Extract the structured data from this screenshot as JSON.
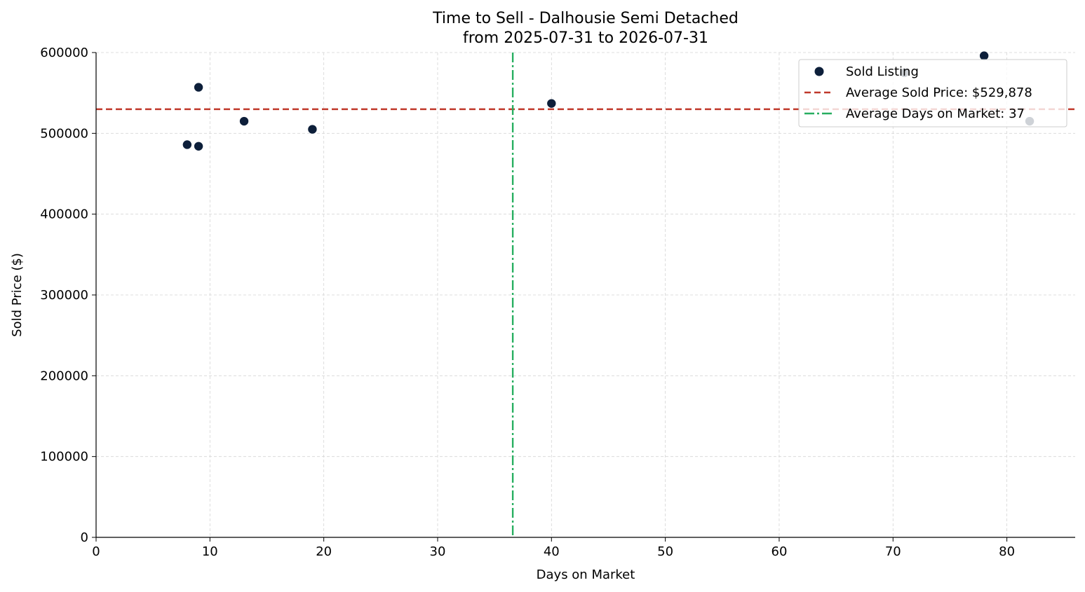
{
  "chart_data": {
    "type": "scatter",
    "title": "Time to Sell - Dalhousie Semi Detached",
    "subtitle": "from 2025-07-31 to 2026-07-31",
    "xlabel": "Days on Market",
    "ylabel": "Sold Price ($)",
    "xlim": [
      0,
      86
    ],
    "ylim": [
      0,
      600000
    ],
    "xticks": [
      0,
      10,
      20,
      30,
      40,
      50,
      60,
      70,
      80
    ],
    "yticks": [
      0,
      100000,
      200000,
      300000,
      400000,
      500000,
      600000
    ],
    "xtick_labels": [
      "0",
      "10",
      "20",
      "30",
      "40",
      "50",
      "60",
      "70",
      "80"
    ],
    "ytick_labels": [
      "0",
      "100000",
      "200000",
      "300000",
      "400000",
      "500000",
      "600000"
    ],
    "grid": true,
    "legend_position": "top-right",
    "series": [
      {
        "name": "Sold Listing",
        "color": "#0d1f3a",
        "points": [
          {
            "x": 8,
            "y": 486000
          },
          {
            "x": 9,
            "y": 484000
          },
          {
            "x": 9,
            "y": 557000
          },
          {
            "x": 13,
            "y": 515000
          },
          {
            "x": 19,
            "y": 505000
          },
          {
            "x": 40,
            "y": 537000
          },
          {
            "x": 71,
            "y": 575000
          },
          {
            "x": 78,
            "y": 596000
          },
          {
            "x": 82,
            "y": 515000
          }
        ]
      }
    ],
    "reference_lines": [
      {
        "orientation": "horizontal",
        "value": 529878,
        "color": "#c0392b",
        "style": "dashed",
        "label": "Average Sold Price: $529,878"
      },
      {
        "orientation": "vertical",
        "value": 36.6,
        "color": "#27ae60",
        "style": "dashdot",
        "label": "Average Days on Market: 37"
      }
    ]
  }
}
